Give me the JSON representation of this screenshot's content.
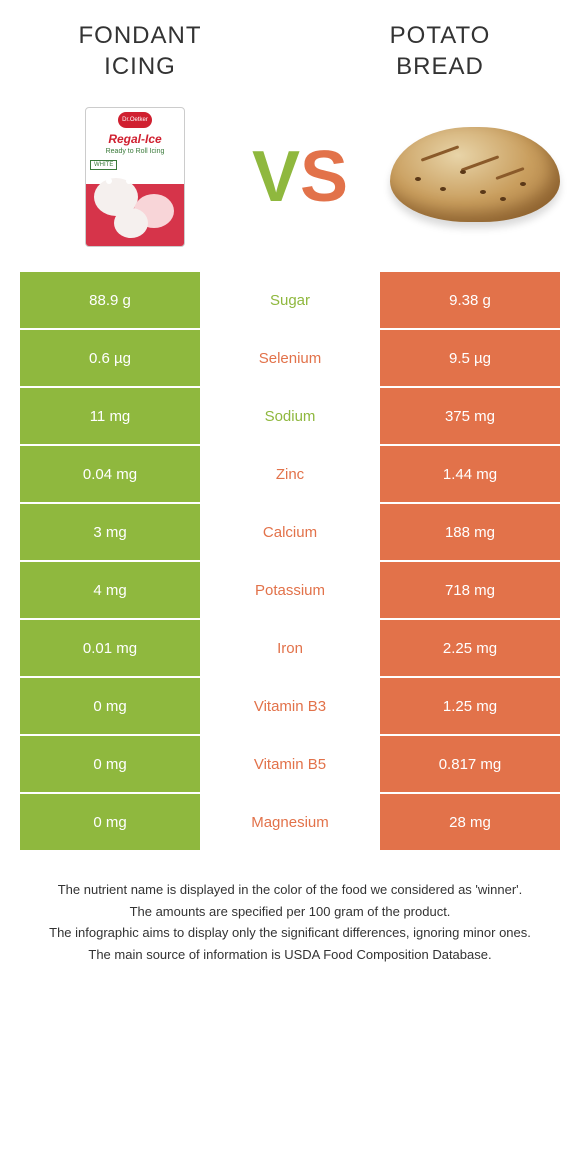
{
  "header": {
    "left_title_line1": "FONDANT",
    "left_title_line2": "ICING",
    "right_title_line1": "POTATO",
    "right_title_line2": "BREAD"
  },
  "vs": {
    "v": "V",
    "s": "S"
  },
  "pkg": {
    "logo": "Dr.Oetker",
    "name": "Regal-Ice",
    "sub": "Ready to Roll Icing",
    "tag": "WHITE"
  },
  "colors": {
    "green": "#8fb83e",
    "orange": "#e2724a"
  },
  "rows": [
    {
      "left": "88.9 g",
      "label": "Sugar",
      "right": "9.38 g",
      "winner": "left"
    },
    {
      "left": "0.6 µg",
      "label": "Selenium",
      "right": "9.5 µg",
      "winner": "right"
    },
    {
      "left": "11 mg",
      "label": "Sodium",
      "right": "375 mg",
      "winner": "left"
    },
    {
      "left": "0.04 mg",
      "label": "Zinc",
      "right": "1.44 mg",
      "winner": "right"
    },
    {
      "left": "3 mg",
      "label": "Calcium",
      "right": "188 mg",
      "winner": "right"
    },
    {
      "left": "4 mg",
      "label": "Potassium",
      "right": "718 mg",
      "winner": "right"
    },
    {
      "left": "0.01 mg",
      "label": "Iron",
      "right": "2.25 mg",
      "winner": "right"
    },
    {
      "left": "0 mg",
      "label": "Vitamin B3",
      "right": "1.25 mg",
      "winner": "right"
    },
    {
      "left": "0 mg",
      "label": "Vitamin B5",
      "right": "0.817 mg",
      "winner": "right"
    },
    {
      "left": "0 mg",
      "label": "Magnesium",
      "right": "28 mg",
      "winner": "right"
    }
  ],
  "footer": {
    "l1": "The nutrient name is displayed in the color of the food we considered as 'winner'.",
    "l2": "The amounts are specified per 100 gram of the product.",
    "l3": "The infographic aims to display only the significant differences, ignoring minor ones.",
    "l4": "The main source of information is USDA Food Composition Database."
  }
}
